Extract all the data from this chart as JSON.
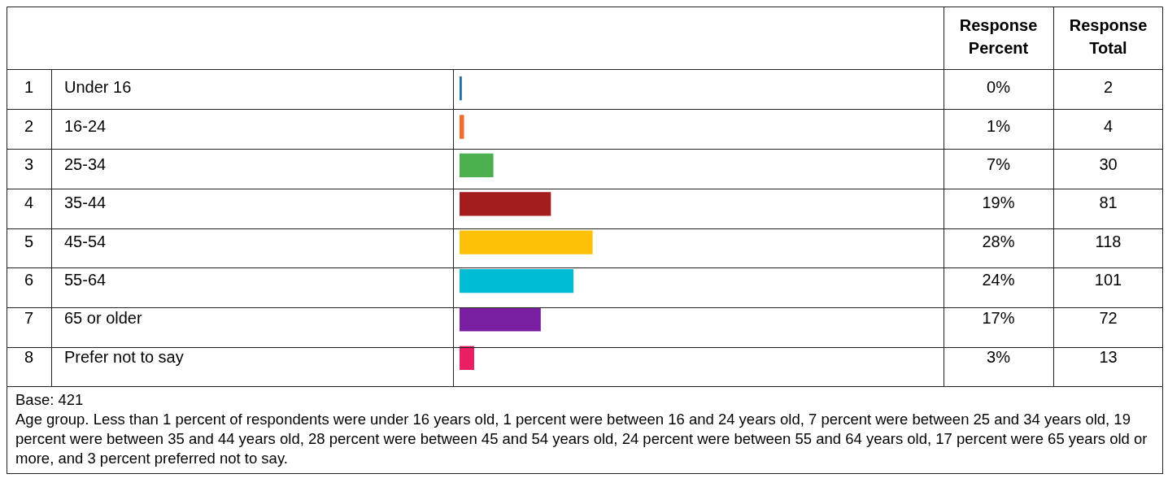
{
  "chart_data": {
    "type": "bar",
    "orientation": "horizontal",
    "categories": [
      "Under 16",
      "16-24",
      "25-34",
      "35-44",
      "45-54",
      "55-64",
      "65 or older",
      "Prefer not to say"
    ],
    "values": [
      2,
      4,
      30,
      81,
      118,
      101,
      72,
      13
    ],
    "colors": [
      "#1f6fad",
      "#f26c2e",
      "#4caf50",
      "#a51c1f",
      "#ffc107",
      "#00bcd4",
      "#7b1fa2",
      "#e91e63"
    ],
    "data_labels": true,
    "grid": false,
    "legend": false,
    "annotations": [
      "Response Percent",
      "Response Total",
      "1",
      "2",
      "3",
      "4",
      "5",
      "6",
      "7",
      "8",
      "0%",
      "1%",
      "7%",
      "19%",
      "28%",
      "24%",
      "17%",
      "3%",
      "Base: 421",
      "Age group. Less than 1 percent of respondents were under 16 years old, 1 percent were between 16 and 24 years old, 7 percent were between 25 and 34 years old, 19 percent were between 35 and 44 years old, 28 percent were between 45 and 54 years old, 24 percent were between 55 and 64 years old, 17 percent were 65 years old or more, and 3 percent preferred not to say."
    ]
  }
}
